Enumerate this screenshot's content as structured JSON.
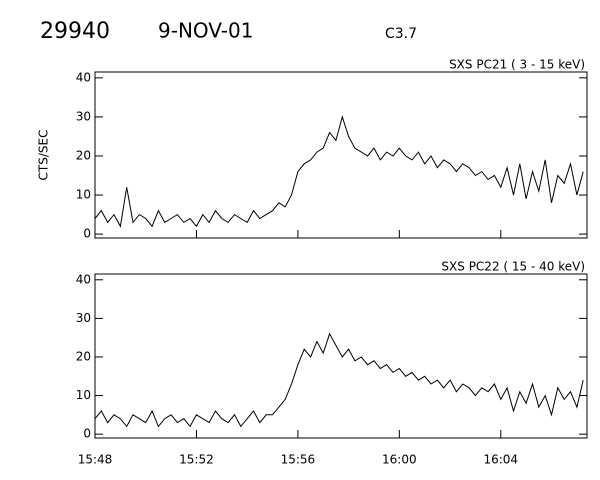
{
  "header": {
    "id": "29940",
    "date": "9-NOV-01",
    "class": "C3.7"
  },
  "chart_data": [
    {
      "type": "line",
      "title": "SXS PC21  (  3 - 15 keV)",
      "ylabel": "CTS/SEC",
      "color": "#000000",
      "x": [
        "15:48:00",
        "15:48:15",
        "15:48:30",
        "15:48:45",
        "15:49:00",
        "15:49:15",
        "15:49:30",
        "15:49:45",
        "15:50:00",
        "15:50:15",
        "15:50:30",
        "15:50:45",
        "15:51:00",
        "15:51:15",
        "15:51:30",
        "15:51:45",
        "15:52:00",
        "15:52:15",
        "15:52:30",
        "15:52:45",
        "15:53:00",
        "15:53:15",
        "15:53:30",
        "15:53:45",
        "15:54:00",
        "15:54:15",
        "15:54:30",
        "15:54:45",
        "15:55:00",
        "15:55:15",
        "15:55:30",
        "15:55:45",
        "15:56:00",
        "15:56:15",
        "15:56:30",
        "15:56:45",
        "15:57:00",
        "15:57:15",
        "15:57:30",
        "15:57:45",
        "15:58:00",
        "15:58:15",
        "15:58:30",
        "15:58:45",
        "15:59:00",
        "15:59:15",
        "15:59:30",
        "15:59:45",
        "16:00:00",
        "16:00:15",
        "16:00:30",
        "16:00:45",
        "16:01:00",
        "16:01:15",
        "16:01:30",
        "16:01:45",
        "16:02:00",
        "16:02:15",
        "16:02:30",
        "16:02:45",
        "16:03:00",
        "16:03:15",
        "16:03:30",
        "16:03:45",
        "16:04:00",
        "16:04:15",
        "16:04:30",
        "16:04:45",
        "16:05:00",
        "16:05:15",
        "16:05:30",
        "16:05:45",
        "16:06:00",
        "16:06:15",
        "16:06:30",
        "16:06:45",
        "16:07:00",
        "16:07:15"
      ],
      "values": [
        4,
        6,
        3,
        5,
        2,
        12,
        3,
        5,
        4,
        2,
        6,
        3,
        4,
        5,
        3,
        4,
        2,
        5,
        3,
        6,
        4,
        3,
        5,
        4,
        3,
        6,
        4,
        5,
        6,
        8,
        7,
        10,
        16,
        18,
        19,
        21,
        22,
        26,
        24,
        30,
        25,
        22,
        21,
        20,
        22,
        19,
        21,
        20,
        22,
        20,
        19,
        21,
        18,
        20,
        17,
        19,
        18,
        16,
        18,
        17,
        15,
        16,
        14,
        15,
        12,
        17,
        10,
        18,
        9,
        16,
        11,
        19,
        8,
        15,
        13,
        18,
        10,
        16
      ],
      "xlim": [
        "15:48:00",
        "16:07:24"
      ],
      "ylim": [
        -1,
        41.5
      ],
      "yticks": [
        0,
        10,
        20,
        30,
        40
      ]
    },
    {
      "type": "line",
      "title": "SXS PC22  ( 15 - 40 keV)",
      "color": "#000000",
      "x": [
        "15:48:00",
        "15:48:15",
        "15:48:30",
        "15:48:45",
        "15:49:00",
        "15:49:15",
        "15:49:30",
        "15:49:45",
        "15:50:00",
        "15:50:15",
        "15:50:30",
        "15:50:45",
        "15:51:00",
        "15:51:15",
        "15:51:30",
        "15:51:45",
        "15:52:00",
        "15:52:15",
        "15:52:30",
        "15:52:45",
        "15:53:00",
        "15:53:15",
        "15:53:30",
        "15:53:45",
        "15:54:00",
        "15:54:15",
        "15:54:30",
        "15:54:45",
        "15:55:00",
        "15:55:15",
        "15:55:30",
        "15:55:45",
        "15:56:00",
        "15:56:15",
        "15:56:30",
        "15:56:45",
        "15:57:00",
        "15:57:15",
        "15:57:30",
        "15:57:45",
        "15:58:00",
        "15:58:15",
        "15:58:30",
        "15:58:45",
        "15:59:00",
        "15:59:15",
        "15:59:30",
        "15:59:45",
        "16:00:00",
        "16:00:15",
        "16:00:30",
        "16:00:45",
        "16:01:00",
        "16:01:15",
        "16:01:30",
        "16:01:45",
        "16:02:00",
        "16:02:15",
        "16:02:30",
        "16:02:45",
        "16:03:00",
        "16:03:15",
        "16:03:30",
        "16:03:45",
        "16:04:00",
        "16:04:15",
        "16:04:30",
        "16:04:45",
        "16:05:00",
        "16:05:15",
        "16:05:30",
        "16:05:45",
        "16:06:00",
        "16:06:15",
        "16:06:30",
        "16:06:45",
        "16:07:00",
        "16:07:15"
      ],
      "values": [
        4,
        6,
        3,
        5,
        4,
        2,
        5,
        4,
        3,
        6,
        2,
        4,
        5,
        3,
        4,
        2,
        5,
        4,
        3,
        6,
        4,
        3,
        5,
        2,
        4,
        6,
        3,
        5,
        5,
        7,
        9,
        13,
        18,
        22,
        20,
        24,
        21,
        26,
        23,
        20,
        22,
        19,
        20,
        18,
        19,
        17,
        18,
        16,
        17,
        15,
        16,
        14,
        15,
        13,
        14,
        12,
        14,
        11,
        13,
        12,
        10,
        12,
        11,
        13,
        9,
        12,
        6,
        11,
        8,
        13,
        7,
        10,
        5,
        12,
        9,
        11,
        7,
        14
      ],
      "xlim": [
        "15:48:00",
        "16:07:24"
      ],
      "xticks": [
        {
          "value": "15:48:00",
          "label": "15:48"
        },
        {
          "value": "15:52:00",
          "label": "15:52"
        },
        {
          "value": "15:56:00",
          "label": "15:56"
        },
        {
          "value": "16:00:00",
          "label": "16:00"
        },
        {
          "value": "16:04:00",
          "label": "16:04"
        }
      ],
      "ylim": [
        -1,
        41.5
      ],
      "yticks": [
        0,
        10,
        20,
        30,
        40
      ]
    }
  ]
}
